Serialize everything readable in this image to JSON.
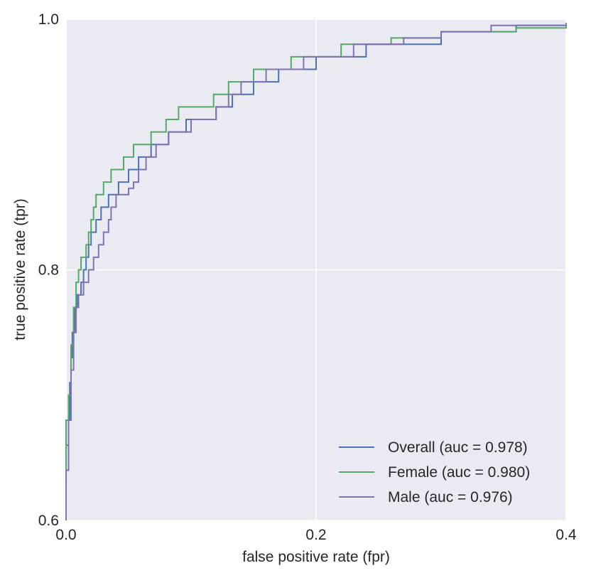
{
  "chart_data": {
    "type": "line",
    "title": "",
    "xlabel": "false positive rate (fpr)",
    "ylabel": "true positive rate (tpr)",
    "xlim": [
      0.0,
      0.4
    ],
    "ylim": [
      0.6,
      1.0
    ],
    "xticks": [
      "0.0",
      "0.2",
      "0.4"
    ],
    "yticks": [
      "0.6",
      "0.8",
      "1.0"
    ],
    "xtick_values": [
      0.0,
      0.2,
      0.4
    ],
    "ytick_values": [
      0.6,
      0.8,
      1.0
    ],
    "grid": true,
    "background": "#eaeaf2",
    "legend_position": "lower-right",
    "series": [
      {
        "name": "Overall (auc = 0.978)",
        "color": "#4c72b0",
        "points": [
          [
            0.0,
            0.6
          ],
          [
            0.0,
            0.66
          ],
          [
            0.002,
            0.68
          ],
          [
            0.003,
            0.71
          ],
          [
            0.004,
            0.73
          ],
          [
            0.005,
            0.75
          ],
          [
            0.007,
            0.77
          ],
          [
            0.009,
            0.78
          ],
          [
            0.012,
            0.79
          ],
          [
            0.014,
            0.8
          ],
          [
            0.016,
            0.81
          ],
          [
            0.018,
            0.82
          ],
          [
            0.02,
            0.83
          ],
          [
            0.024,
            0.84
          ],
          [
            0.028,
            0.85
          ],
          [
            0.034,
            0.86
          ],
          [
            0.042,
            0.87
          ],
          [
            0.05,
            0.88
          ],
          [
            0.058,
            0.89
          ],
          [
            0.068,
            0.9
          ],
          [
            0.082,
            0.91
          ],
          [
            0.096,
            0.92
          ],
          [
            0.12,
            0.93
          ],
          [
            0.133,
            0.94
          ],
          [
            0.15,
            0.95
          ],
          [
            0.17,
            0.96
          ],
          [
            0.2,
            0.97
          ],
          [
            0.24,
            0.98
          ],
          [
            0.3,
            0.99
          ],
          [
            0.36,
            0.995
          ],
          [
            0.4,
            0.996
          ]
        ]
      },
      {
        "name": "Female (auc = 0.980)",
        "color": "#55a868",
        "points": [
          [
            0.0,
            0.6
          ],
          [
            0.0,
            0.68
          ],
          [
            0.002,
            0.7
          ],
          [
            0.004,
            0.74
          ],
          [
            0.006,
            0.77
          ],
          [
            0.008,
            0.79
          ],
          [
            0.01,
            0.8
          ],
          [
            0.012,
            0.81
          ],
          [
            0.016,
            0.82
          ],
          [
            0.018,
            0.83
          ],
          [
            0.02,
            0.84
          ],
          [
            0.022,
            0.85
          ],
          [
            0.024,
            0.86
          ],
          [
            0.03,
            0.87
          ],
          [
            0.036,
            0.88
          ],
          [
            0.046,
            0.89
          ],
          [
            0.054,
            0.9
          ],
          [
            0.068,
            0.91
          ],
          [
            0.08,
            0.92
          ],
          [
            0.09,
            0.93
          ],
          [
            0.118,
            0.94
          ],
          [
            0.13,
            0.95
          ],
          [
            0.15,
            0.96
          ],
          [
            0.18,
            0.97
          ],
          [
            0.22,
            0.98
          ],
          [
            0.26,
            0.985
          ],
          [
            0.3,
            0.99
          ],
          [
            0.36,
            0.993
          ],
          [
            0.4,
            0.995
          ]
        ]
      },
      {
        "name": "Male (auc = 0.976)",
        "color": "#8172b2",
        "points": [
          [
            0.0,
            0.6
          ],
          [
            0.0,
            0.64
          ],
          [
            0.002,
            0.68
          ],
          [
            0.004,
            0.72
          ],
          [
            0.006,
            0.75
          ],
          [
            0.008,
            0.77
          ],
          [
            0.01,
            0.78
          ],
          [
            0.014,
            0.79
          ],
          [
            0.018,
            0.8
          ],
          [
            0.022,
            0.81
          ],
          [
            0.026,
            0.82
          ],
          [
            0.03,
            0.83
          ],
          [
            0.034,
            0.84
          ],
          [
            0.036,
            0.85
          ],
          [
            0.04,
            0.86
          ],
          [
            0.05,
            0.865
          ],
          [
            0.054,
            0.87
          ],
          [
            0.058,
            0.88
          ],
          [
            0.064,
            0.89
          ],
          [
            0.072,
            0.9
          ],
          [
            0.082,
            0.91
          ],
          [
            0.1,
            0.92
          ],
          [
            0.12,
            0.93
          ],
          [
            0.13,
            0.94
          ],
          [
            0.14,
            0.95
          ],
          [
            0.16,
            0.96
          ],
          [
            0.19,
            0.97
          ],
          [
            0.23,
            0.98
          ],
          [
            0.27,
            0.985
          ],
          [
            0.3,
            0.99
          ],
          [
            0.34,
            0.995
          ],
          [
            0.4,
            0.997
          ]
        ]
      }
    ]
  }
}
